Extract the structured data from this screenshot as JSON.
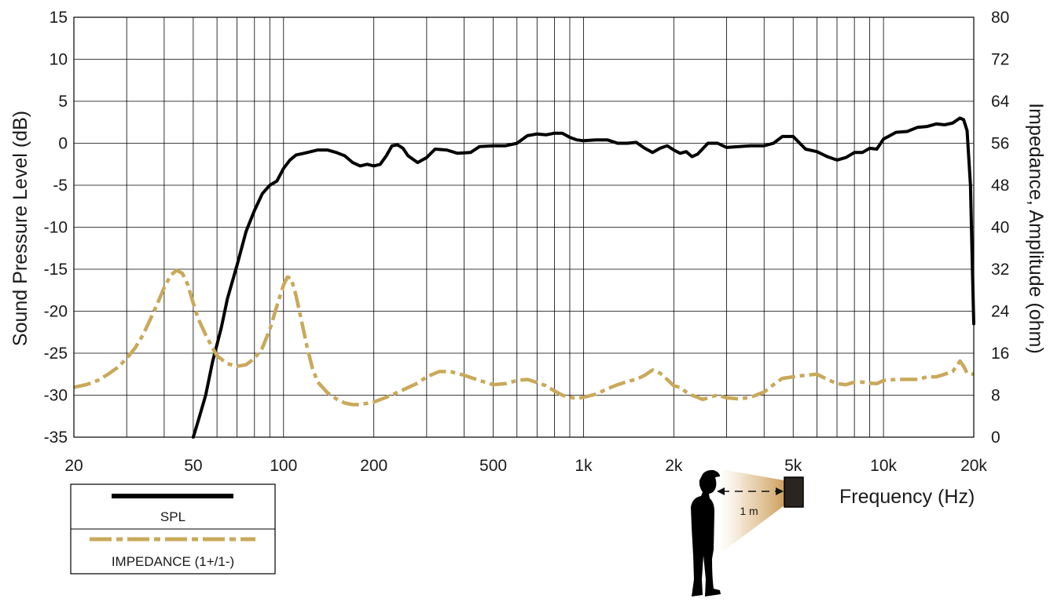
{
  "chart_data": {
    "type": "line",
    "x_scale": "log",
    "x_range": [
      20,
      20000
    ],
    "x_ticks": [
      {
        "value": 20,
        "label": "20"
      },
      {
        "value": 50,
        "label": "50"
      },
      {
        "value": 100,
        "label": "100"
      },
      {
        "value": 200,
        "label": "200"
      },
      {
        "value": 500,
        "label": "500"
      },
      {
        "value": 1000,
        "label": "1k"
      },
      {
        "value": 2000,
        "label": "2k"
      },
      {
        "value": 5000,
        "label": "5k"
      },
      {
        "value": 10000,
        "label": "10k"
      },
      {
        "value": 20000,
        "label": "20k"
      }
    ],
    "xlabel": "Frequency  (Hz)",
    "y_left": {
      "label": "Sound Pressure Level (dB)",
      "range": [
        -35,
        15
      ],
      "ticks": [
        15,
        10,
        5,
        0,
        -5,
        -10,
        -15,
        -20,
        -25,
        -30,
        -35
      ]
    },
    "y_right": {
      "label": "Impedance, Amplitude  (ohm)",
      "range": [
        0,
        80
      ],
      "ticks": [
        80,
        72,
        64,
        56,
        48,
        40,
        32,
        24,
        16,
        8,
        0
      ]
    },
    "grid": true,
    "legend_position": "bottom-left",
    "series": [
      {
        "name": "SPL",
        "axis": "left",
        "color": "#000000",
        "line_style": "solid",
        "points": [
          [
            50,
            -35
          ],
          [
            52,
            -33
          ],
          [
            55,
            -30
          ],
          [
            58,
            -26
          ],
          [
            62,
            -22
          ],
          [
            65,
            -18.5
          ],
          [
            70,
            -14.5
          ],
          [
            75,
            -10.5
          ],
          [
            80,
            -8
          ],
          [
            85,
            -6
          ],
          [
            90,
            -5
          ],
          [
            95,
            -4.5
          ],
          [
            100,
            -3
          ],
          [
            105,
            -2
          ],
          [
            110,
            -1.4
          ],
          [
            120,
            -1.1
          ],
          [
            130,
            -0.8
          ],
          [
            140,
            -0.8
          ],
          [
            150,
            -1.1
          ],
          [
            160,
            -1.5
          ],
          [
            170,
            -2.3
          ],
          [
            180,
            -2.7
          ],
          [
            190,
            -2.5
          ],
          [
            200,
            -2.7
          ],
          [
            210,
            -2.5
          ],
          [
            220,
            -1.5
          ],
          [
            230,
            -0.3
          ],
          [
            240,
            -0.2
          ],
          [
            250,
            -0.6
          ],
          [
            260,
            -1.5
          ],
          [
            280,
            -2.3
          ],
          [
            300,
            -1.7
          ],
          [
            320,
            -0.7
          ],
          [
            350,
            -0.8
          ],
          [
            380,
            -1.2
          ],
          [
            420,
            -1.1
          ],
          [
            450,
            -0.4
          ],
          [
            500,
            -0.3
          ],
          [
            550,
            -0.3
          ],
          [
            600,
            0.0
          ],
          [
            650,
            0.9
          ],
          [
            700,
            1.1
          ],
          [
            750,
            1.0
          ],
          [
            800,
            1.2
          ],
          [
            850,
            1.2
          ],
          [
            900,
            0.7
          ],
          [
            950,
            0.4
          ],
          [
            1000,
            0.3
          ],
          [
            1100,
            0.4
          ],
          [
            1200,
            0.4
          ],
          [
            1300,
            0.0
          ],
          [
            1400,
            0.0
          ],
          [
            1500,
            0.1
          ],
          [
            1600,
            -0.6
          ],
          [
            1700,
            -1.1
          ],
          [
            1800,
            -0.6
          ],
          [
            1900,
            -0.3
          ],
          [
            2000,
            -0.8
          ],
          [
            2100,
            -1.2
          ],
          [
            2200,
            -1.0
          ],
          [
            2300,
            -1.6
          ],
          [
            2400,
            -1.3
          ],
          [
            2600,
            0.0
          ],
          [
            2800,
            0.0
          ],
          [
            3000,
            -0.5
          ],
          [
            3300,
            -0.4
          ],
          [
            3600,
            -0.3
          ],
          [
            4000,
            -0.3
          ],
          [
            4300,
            0.0
          ],
          [
            4600,
            0.8
          ],
          [
            5000,
            0.8
          ],
          [
            5500,
            -0.7
          ],
          [
            6000,
            -1.0
          ],
          [
            6500,
            -1.6
          ],
          [
            7000,
            -2.0
          ],
          [
            7500,
            -1.7
          ],
          [
            8000,
            -1.1
          ],
          [
            8500,
            -1.1
          ],
          [
            9000,
            -0.6
          ],
          [
            9500,
            -0.7
          ],
          [
            10000,
            0.5
          ],
          [
            10500,
            0.9
          ],
          [
            11000,
            1.3
          ],
          [
            12000,
            1.4
          ],
          [
            13000,
            1.9
          ],
          [
            14000,
            2.0
          ],
          [
            15000,
            2.3
          ],
          [
            16000,
            2.2
          ],
          [
            17000,
            2.4
          ],
          [
            18000,
            3.0
          ],
          [
            18500,
            2.8
          ],
          [
            19000,
            1.5
          ],
          [
            19500,
            -5
          ],
          [
            19800,
            -15
          ],
          [
            20000,
            -21.5
          ]
        ]
      },
      {
        "name": "IMPEDANCE (1+/1-)",
        "axis": "right",
        "color": "#c9a95a",
        "line_style": "dash-dot",
        "points": [
          [
            20,
            9.5
          ],
          [
            22,
            10.0
          ],
          [
            24,
            10.8
          ],
          [
            26,
            12.0
          ],
          [
            28,
            13.3
          ],
          [
            30,
            15.0
          ],
          [
            32,
            17.0
          ],
          [
            34,
            19.5
          ],
          [
            36,
            22.5
          ],
          [
            38,
            25.5
          ],
          [
            40,
            28.5
          ],
          [
            42,
            30.8
          ],
          [
            44,
            31.8
          ],
          [
            46,
            31.2
          ],
          [
            48,
            29.0
          ],
          [
            50,
            25.5
          ],
          [
            52,
            22.5
          ],
          [
            55,
            19.5
          ],
          [
            58,
            17.0
          ],
          [
            60,
            15.5
          ],
          [
            65,
            14.0
          ],
          [
            70,
            13.5
          ],
          [
            75,
            13.8
          ],
          [
            80,
            15.0
          ],
          [
            85,
            17.0
          ],
          [
            90,
            20.5
          ],
          [
            95,
            25.0
          ],
          [
            100,
            29.0
          ],
          [
            103,
            30.5
          ],
          [
            106,
            30.3
          ],
          [
            110,
            27.0
          ],
          [
            115,
            22.0
          ],
          [
            120,
            17.0
          ],
          [
            125,
            13.0
          ],
          [
            130,
            10.5
          ],
          [
            140,
            8.5
          ],
          [
            150,
            7.3
          ],
          [
            160,
            6.5
          ],
          [
            170,
            6.2
          ],
          [
            180,
            6.2
          ],
          [
            200,
            6.7
          ],
          [
            220,
            7.6
          ],
          [
            250,
            9.0
          ],
          [
            280,
            10.3
          ],
          [
            300,
            11.5
          ],
          [
            330,
            12.5
          ],
          [
            360,
            12.5
          ],
          [
            400,
            11.8
          ],
          [
            450,
            10.8
          ],
          [
            500,
            10.0
          ],
          [
            550,
            10.2
          ],
          [
            600,
            10.8
          ],
          [
            650,
            11.0
          ],
          [
            700,
            10.4
          ],
          [
            750,
            9.8
          ],
          [
            800,
            8.8
          ],
          [
            850,
            8.0
          ],
          [
            900,
            7.6
          ],
          [
            950,
            7.4
          ],
          [
            1000,
            7.6
          ],
          [
            1100,
            8.2
          ],
          [
            1200,
            9.2
          ],
          [
            1300,
            10.0
          ],
          [
            1400,
            10.6
          ],
          [
            1500,
            11.0
          ],
          [
            1600,
            11.8
          ],
          [
            1700,
            12.8
          ],
          [
            1800,
            12.2
          ],
          [
            1900,
            11.0
          ],
          [
            2000,
            9.8
          ],
          [
            2100,
            9.5
          ],
          [
            2200,
            8.6
          ],
          [
            2300,
            8.0
          ],
          [
            2400,
            7.6
          ],
          [
            2500,
            7.2
          ],
          [
            2700,
            7.8
          ],
          [
            2800,
            8.0
          ],
          [
            3000,
            7.5
          ],
          [
            3300,
            7.3
          ],
          [
            3600,
            7.6
          ],
          [
            4000,
            8.6
          ],
          [
            4300,
            10.0
          ],
          [
            4600,
            11.2
          ],
          [
            5000,
            11.5
          ],
          [
            5500,
            11.8
          ],
          [
            6000,
            12.0
          ],
          [
            6500,
            11.0
          ],
          [
            7000,
            10.2
          ],
          [
            7500,
            10.0
          ],
          [
            8000,
            10.5
          ],
          [
            8500,
            10.5
          ],
          [
            9000,
            10.3
          ],
          [
            9500,
            10.2
          ],
          [
            10000,
            10.8
          ],
          [
            11000,
            11.0
          ],
          [
            12000,
            11.0
          ],
          [
            13000,
            11.0
          ],
          [
            14000,
            11.5
          ],
          [
            15000,
            11.5
          ],
          [
            16000,
            12.0
          ],
          [
            17000,
            12.5
          ],
          [
            18000,
            14.5
          ],
          [
            18500,
            13.5
          ],
          [
            19000,
            12.2
          ],
          [
            20000,
            12.0
          ]
        ]
      }
    ],
    "legend": [
      {
        "label": "SPL",
        "color": "#000000",
        "line_style": "solid"
      },
      {
        "label": "IMPEDANCE (1+/1-)",
        "color": "#c9a95a",
        "line_style": "dash-dot"
      }
    ],
    "annotations": [
      {
        "text": "1 m",
        "kind": "measurement-distance"
      }
    ]
  }
}
